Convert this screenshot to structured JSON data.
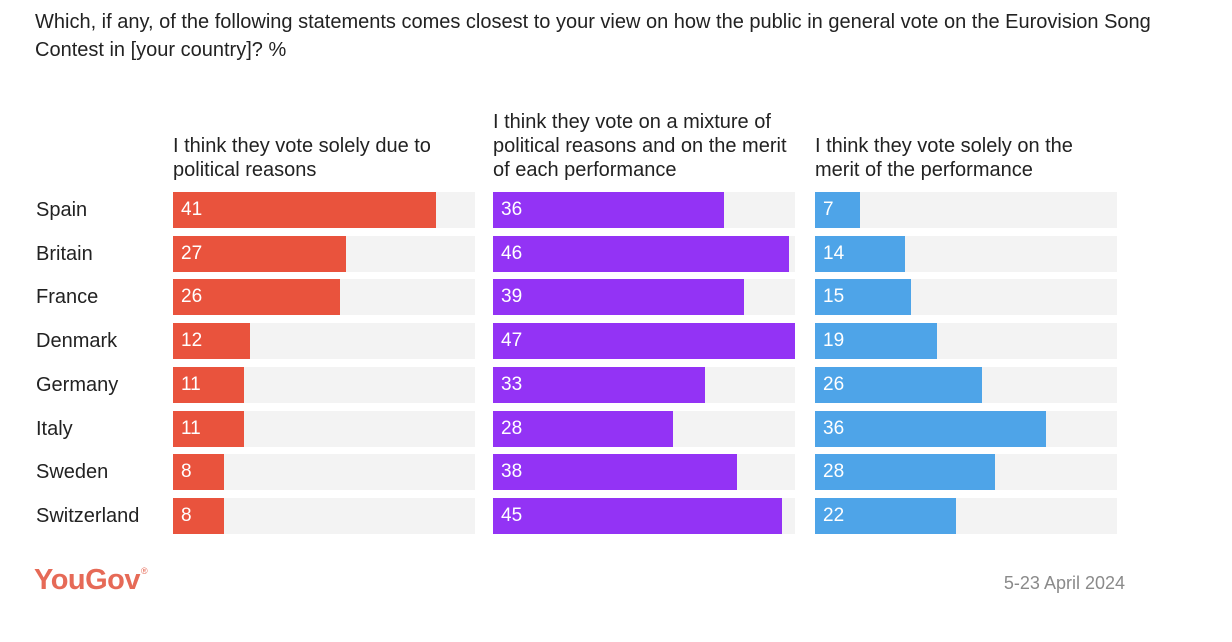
{
  "title": "Which, if any, of the following statements comes closest to your view on how the public in general vote on the Eurovision Song Contest in [your country]? %",
  "footer": {
    "logo_text": "YouGov",
    "logo_mark": "®",
    "date": "5-23 April 2024"
  },
  "chart_data": {
    "type": "bar",
    "orientation": "horizontal",
    "title": "Which, if any, of the following statements comes closest to your view on how the public in general vote on the Eurovision Song Contest in [your country]? %",
    "xlabel": "",
    "ylabel": "",
    "xlim": [
      0,
      47
    ],
    "grid": false,
    "legend": "none",
    "categories": [
      "Spain",
      "Britain",
      "France",
      "Denmark",
      "Germany",
      "Italy",
      "Sweden",
      "Switzerland"
    ],
    "series": [
      {
        "name": "I think they vote solely due to political reasons",
        "color": "#e9533d",
        "values": [
          41,
          27,
          26,
          12,
          11,
          11,
          8,
          8
        ]
      },
      {
        "name": "I think they vote on a mixture of political reasons and on the merit of each performance",
        "color": "#9333f5",
        "values": [
          36,
          46,
          39,
          47,
          33,
          28,
          38,
          45
        ]
      },
      {
        "name": "I think they vote solely on the merit of the performance",
        "color": "#4ea4e8",
        "values": [
          7,
          14,
          15,
          19,
          26,
          36,
          28,
          22
        ]
      }
    ],
    "track_color": "#f3f3f3"
  }
}
